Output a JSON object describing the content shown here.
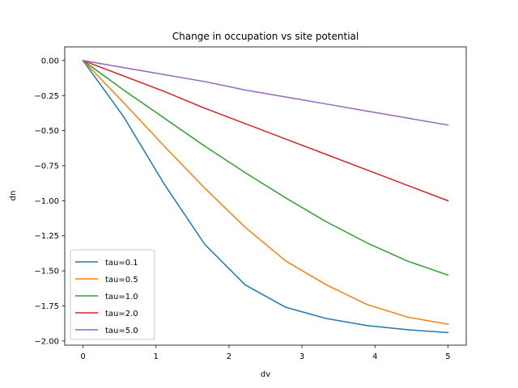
{
  "chart_data": {
    "type": "line",
    "title": "Change in occupation vs site potential",
    "xlabel": "dv",
    "ylabel": "dn",
    "xlim": [
      -0.25,
      5.25
    ],
    "ylim": [
      -2.03,
      0.0975
    ],
    "xticks": [
      0,
      1,
      2,
      3,
      4,
      5
    ],
    "yticks": [
      0.0,
      -0.25,
      -0.5,
      -0.75,
      -1.0,
      -1.25,
      -1.5,
      -1.75,
      -2.0
    ],
    "ytick_labels": [
      "0.00",
      "−0.25",
      "−0.50",
      "−0.75",
      "−1.00",
      "−1.25",
      "−1.50",
      "−1.75",
      "−2.00"
    ],
    "grid": false,
    "legend_position": "lower-left",
    "x": [
      0,
      0.5556,
      1.1111,
      1.6667,
      2.2222,
      2.7778,
      3.3333,
      3.8889,
      4.4444,
      5.0
    ],
    "series": [
      {
        "name": "tau=0.1",
        "color": "#1f77b4",
        "values": [
          0.0,
          -0.4,
          -0.88,
          -1.31,
          -1.6,
          -1.76,
          -1.84,
          -1.89,
          -1.92,
          -1.94
        ]
      },
      {
        "name": "tau=0.5",
        "color": "#ff7f0e",
        "values": [
          0.0,
          -0.3,
          -0.61,
          -0.91,
          -1.19,
          -1.43,
          -1.6,
          -1.74,
          -1.83,
          -1.88
        ]
      },
      {
        "name": "tau=1.0",
        "color": "#2ca02c",
        "values": [
          0.0,
          -0.21,
          -0.41,
          -0.61,
          -0.8,
          -0.98,
          -1.15,
          -1.3,
          -1.43,
          -1.53
        ]
      },
      {
        "name": "tau=2.0",
        "color": "#d62728",
        "values": [
          0.0,
          -0.11,
          -0.22,
          -0.34,
          -0.45,
          -0.56,
          -0.67,
          -0.78,
          -0.89,
          -1.0
        ]
      },
      {
        "name": "tau=5.0",
        "color": "#9467bd",
        "values": [
          0.0,
          -0.05,
          -0.1,
          -0.15,
          -0.21,
          -0.26,
          -0.31,
          -0.36,
          -0.41,
          -0.46
        ]
      }
    ]
  }
}
